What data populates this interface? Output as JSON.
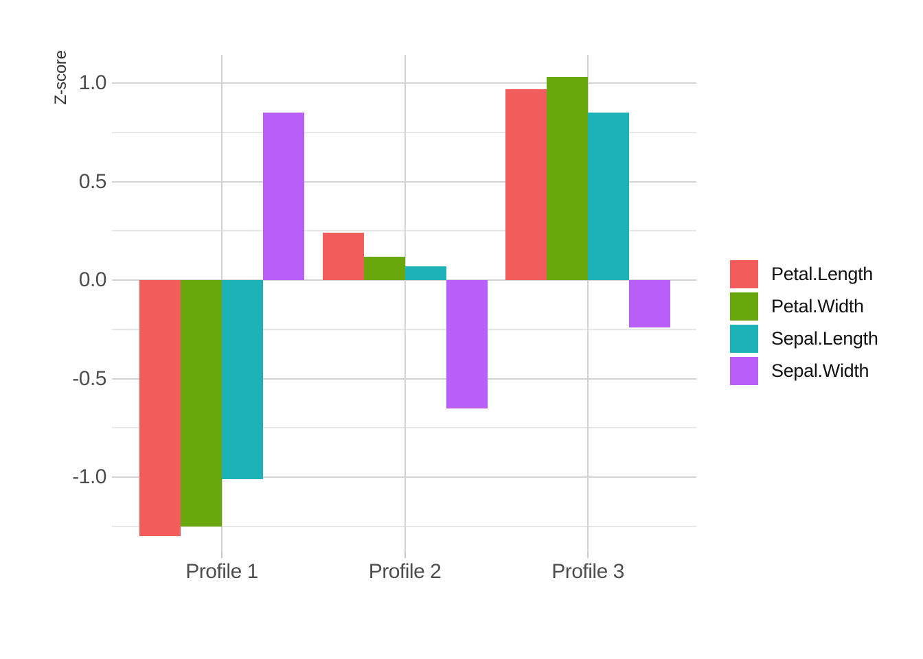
{
  "chart_data": {
    "type": "bar",
    "title": "",
    "xlabel": "",
    "ylabel": "Z-score",
    "categories": [
      "Profile 1",
      "Profile 2",
      "Profile 3"
    ],
    "series": [
      {
        "name": "Petal.Length",
        "color": "#f25c5a",
        "values": [
          -1.3,
          0.24,
          0.97
        ]
      },
      {
        "name": "Petal.Width",
        "color": "#68a80d",
        "values": [
          -1.25,
          0.12,
          1.03
        ]
      },
      {
        "name": "Sepal.Length",
        "color": "#1db2b8",
        "values": [
          -1.01,
          0.07,
          0.85
        ]
      },
      {
        "name": "Sepal.Width",
        "color": "#b75ff6",
        "values": [
          0.85,
          -0.65,
          -0.24
        ]
      }
    ],
    "y_tick_labels": [
      "1.0",
      "0.5",
      "0.0",
      "-0.5",
      "-1.0"
    ],
    "y_tick_values": [
      1.0,
      0.5,
      0.0,
      -0.5,
      -1.0
    ],
    "y_minor_tick_values": [
      0.75,
      0.25,
      -0.25,
      -0.75,
      -1.25
    ],
    "ylim": [
      -1.39,
      1.14
    ],
    "grid": true,
    "legend_position": "right",
    "bar_group_width": 0.9
  },
  "colors": {
    "background": "#ffffff",
    "grid_major": "#d3d3d3",
    "grid_minor": "#e7e7e7",
    "axis_tick": "#c9c9c9",
    "tick_text": "#4d4d4d",
    "axis_title_text": "#333333",
    "legend_text": "#111111"
  }
}
